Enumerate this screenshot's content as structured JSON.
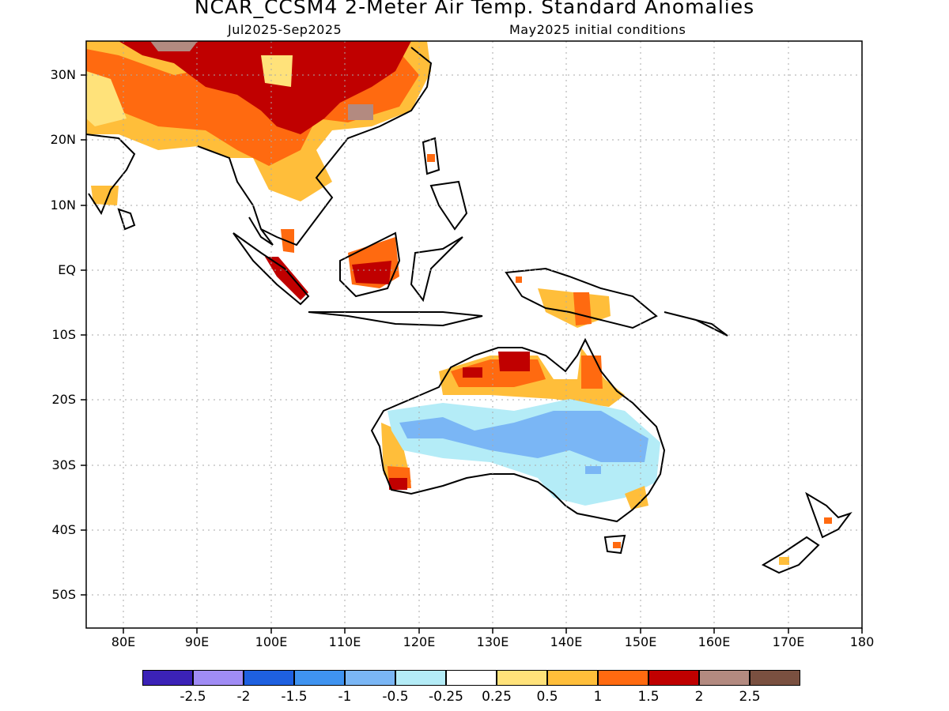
{
  "title": "NCAR_CCSM4 2-Meter Air Temp. Standard Anomalies",
  "subtitle_left": "Jul2025-Sep2025",
  "subtitle_right": "May2025 initial conditions",
  "lat_labels": [
    "30N",
    "20N",
    "10N",
    "EQ",
    "10S",
    "20S",
    "30S",
    "40S",
    "50S"
  ],
  "lon_labels": [
    "80E",
    "90E",
    "100E",
    "110E",
    "120E",
    "130E",
    "140E",
    "150E",
    "160E",
    "170E",
    "180"
  ],
  "colorbar": {
    "colors": [
      "#3b22b7",
      "#a08cf5",
      "#1e60e0",
      "#3f93f0",
      "#7ab6f5",
      "#b4ecf7",
      "#ffffff",
      "#ffe27a",
      "#ffbe3a",
      "#ff6a10",
      "#c00000",
      "#b38a80",
      "#7a5040"
    ],
    "labels": [
      "-2.5",
      "-2",
      "-1.5",
      "-1",
      "-0.5",
      "-0.25",
      "0.25",
      "0.5",
      "1",
      "1.5",
      "2",
      "2.5"
    ]
  },
  "map": {
    "lon_range": [
      75,
      180
    ],
    "lat_range": [
      -55,
      35
    ],
    "grid": true
  }
}
